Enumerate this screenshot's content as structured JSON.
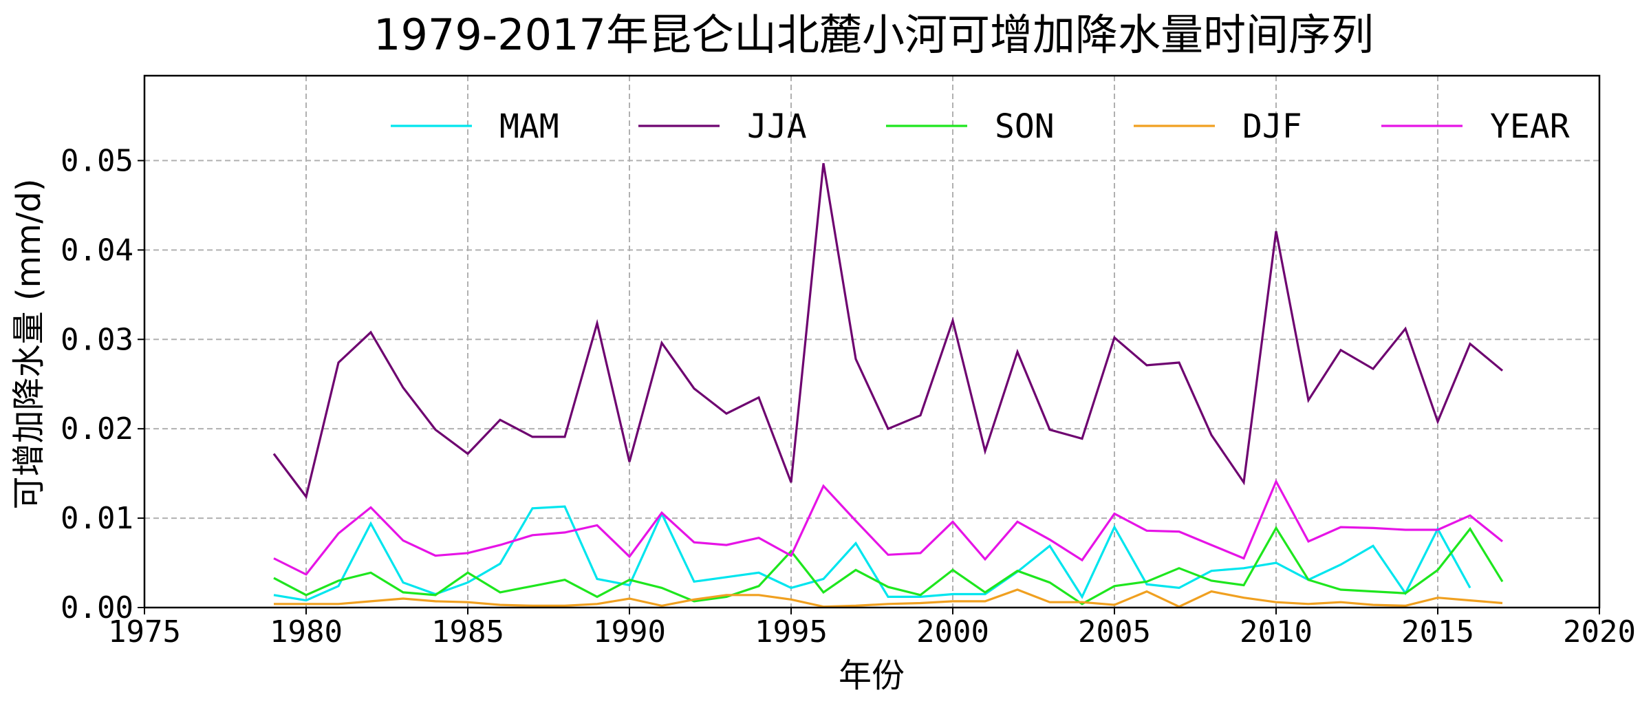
{
  "chart_data": {
    "type": "line",
    "title": "1979-2017年昆仑山北麓小河可增加降水量时间序列",
    "xlabel": "年份",
    "ylabel": "可增加降水量 (mm/d)",
    "xlim": [
      1975,
      2020
    ],
    "ylim": [
      0,
      0.0595
    ],
    "xticks": [
      1975,
      1980,
      1985,
      1990,
      1995,
      2000,
      2005,
      2010,
      2015,
      2020
    ],
    "yticks": [
      "0.00",
      "0.01",
      "0.02",
      "0.03",
      "0.04",
      "0.05"
    ],
    "grid": true,
    "legend_position": "top",
    "x": [
      1979,
      1980,
      1981,
      1982,
      1983,
      1984,
      1985,
      1986,
      1987,
      1988,
      1989,
      1990,
      1991,
      1992,
      1993,
      1994,
      1995,
      1996,
      1997,
      1998,
      1999,
      2000,
      2001,
      2002,
      2003,
      2004,
      2005,
      2006,
      2007,
      2008,
      2009,
      2010,
      2011,
      2012,
      2013,
      2014,
      2015,
      2016,
      2017
    ],
    "series": [
      {
        "name": "MAM",
        "color": "#00e5ee",
        "values": [
          0.0014,
          0.0008,
          0.0024,
          0.0094,
          0.0028,
          0.0015,
          0.0028,
          0.0049,
          0.0111,
          0.0113,
          0.0032,
          0.0025,
          0.0105,
          0.0029,
          0.0034,
          0.0039,
          0.0022,
          0.0032,
          0.0072,
          0.0012,
          0.0012,
          0.0015,
          0.0015,
          0.004,
          0.0069,
          0.0012,
          0.009,
          0.0026,
          0.0022,
          0.0041,
          0.0044,
          0.005,
          0.0031,
          0.0048,
          0.0069,
          0.0016,
          0.0088,
          0.0022,
          null
        ]
      },
      {
        "name": "JJA",
        "color": "#6e0470",
        "values": [
          0.0172,
          0.0124,
          0.0274,
          0.0308,
          0.0246,
          0.0199,
          0.0172,
          0.021,
          0.0191,
          0.0191,
          0.0318,
          0.0163,
          0.0296,
          0.0245,
          0.0217,
          0.0235,
          0.014,
          0.0497,
          0.0278,
          0.02,
          0.0215,
          0.0321,
          0.0175,
          0.0286,
          0.0199,
          0.0189,
          0.0302,
          0.0271,
          0.0274,
          0.0193,
          0.014,
          0.0421,
          0.0232,
          0.0288,
          0.0267,
          0.0312,
          0.0208,
          0.0295,
          0.0265
        ]
      },
      {
        "name": "SON",
        "color": "#1ee61e",
        "values": [
          0.0033,
          0.0014,
          0.003,
          0.0039,
          0.0017,
          0.0014,
          0.0039,
          0.0017,
          0.0024,
          0.0031,
          0.0012,
          0.0031,
          0.0022,
          0.0007,
          0.0012,
          0.0024,
          0.0063,
          0.0017,
          0.0042,
          0.0023,
          0.0014,
          0.0042,
          0.0017,
          0.0041,
          0.0028,
          0.0004,
          0.0024,
          0.0029,
          0.0044,
          0.003,
          0.0025,
          0.0089,
          0.0031,
          0.002,
          0.0018,
          0.0016,
          0.0042,
          0.0088,
          0.0029
        ]
      },
      {
        "name": "DJF",
        "color": "#f0a020",
        "values": [
          0.0004,
          0.0004,
          0.0004,
          0.0007,
          0.001,
          0.0007,
          0.0006,
          0.0003,
          0.0002,
          0.0002,
          0.0004,
          0.001,
          0.0002,
          0.0009,
          0.0014,
          0.0014,
          0.0009,
          0.0001,
          0.0002,
          0.0004,
          0.0005,
          0.0007,
          0.0007,
          0.002,
          0.0006,
          0.0006,
          0.0003,
          0.0018,
          0.0001,
          0.0018,
          0.0011,
          0.0006,
          0.0004,
          0.0006,
          0.0003,
          0.0002,
          0.0011,
          0.0008,
          0.0005
        ]
      },
      {
        "name": "YEAR",
        "color": "#e614e6",
        "values": [
          0.0055,
          0.0037,
          0.0083,
          0.0112,
          0.0075,
          0.0058,
          0.0061,
          0.007,
          0.0081,
          0.0084,
          0.0092,
          0.0057,
          0.0106,
          0.0073,
          0.007,
          0.0078,
          0.0058,
          0.0136,
          0.0097,
          0.0059,
          0.0061,
          0.0096,
          0.0054,
          0.0096,
          0.0076,
          0.0053,
          0.0105,
          0.0086,
          0.0085,
          0.007,
          0.0055,
          0.0141,
          0.0074,
          0.009,
          0.0089,
          0.0087,
          0.0087,
          0.0103,
          0.0074
        ]
      }
    ]
  }
}
